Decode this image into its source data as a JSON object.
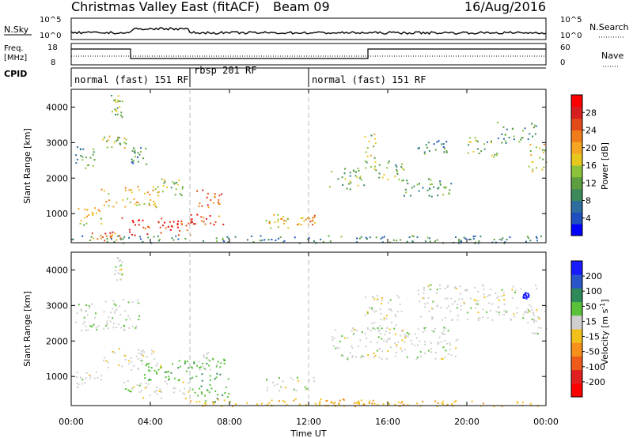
{
  "header": {
    "title": "Christmas Valley East (fitACF)",
    "beam": "Beam 09",
    "date": "16/Aug/2016"
  },
  "panels": {
    "nsky": {
      "left_label": "N.Sky",
      "right_label": "N.Search",
      "left_ticks": [
        "10^5",
        "10^0"
      ],
      "right_ticks": [
        "10^5",
        "10^0"
      ]
    },
    "freq": {
      "left_label_1": "Freq.",
      "left_label_2": "[MHz]",
      "right_label": "Nave",
      "left_ticks": [
        "18",
        "8"
      ],
      "right_ticks": [
        "60",
        "0"
      ]
    },
    "cpid": {
      "label": "CPID",
      "segments": [
        {
          "start": "00:00",
          "end": "06:00",
          "label": "normal (fast) 151 RF"
        },
        {
          "start": "06:00",
          "end": "12:00",
          "label": "rbsp 201 RF"
        },
        {
          "start": "12:00",
          "end": "24:00",
          "label": "normal (fast) 151 RF"
        }
      ]
    }
  },
  "x_axis": {
    "label": "Time UT",
    "ticks": [
      "00:00",
      "04:00",
      "08:00",
      "12:00",
      "16:00",
      "20:00",
      "00:00"
    ]
  },
  "power_panel": {
    "ylabel": "Slant Range [km]",
    "yticks": [
      "1000",
      "2000",
      "3000",
      "4000"
    ],
    "colorbar_label": "Power [dB]",
    "colorbar_ticks": [
      "4",
      "8",
      "12",
      "16",
      "20",
      "24",
      "28"
    ],
    "colors": [
      "#0000ff",
      "#1f4fbf",
      "#2d6e9e",
      "#3c8a5a",
      "#5c9e40",
      "#8bc23a",
      "#e8c81f",
      "#f5a623",
      "#f07d1a",
      "#e24a1a",
      "#d61e1e",
      "#ff0000"
    ]
  },
  "velocity_panel": {
    "ylabel": "Slant Range [km]",
    "yticks": [
      "1000",
      "2000",
      "3000",
      "4000"
    ],
    "colorbar_label": "Velocity [m s",
    "colorbar_label_sup": "-1",
    "colorbar_label_end": "]",
    "colorbar_ticks": [
      "200",
      "100",
      "50",
      "15",
      "-15",
      "-50",
      "-100",
      "-200"
    ],
    "colors": [
      "#1a1aff",
      "#2a55c8",
      "#2f8a5a",
      "#59c23a",
      "#cfcfcf",
      "#f2c01a",
      "#f5901a",
      "#ee5a17",
      "#e02020",
      "#ff0000"
    ]
  },
  "chart_data": {
    "type": "heatmap",
    "x_range_hours": [
      0,
      24
    ],
    "y_range_km": [
      180,
      4500
    ],
    "power_range_db": [
      0,
      30
    ],
    "velocity_range": [
      -250,
      250
    ],
    "cpid_boundaries_hours": [
      6,
      12
    ],
    "power_patches": [
      {
        "t0": 2.0,
        "t1": 2.6,
        "r0": 3700,
        "r1": 4400,
        "p": 12
      },
      {
        "t0": 0.2,
        "t1": 1.2,
        "r0": 2300,
        "r1": 2900,
        "p": 10
      },
      {
        "t0": 1.5,
        "t1": 2.8,
        "r0": 2800,
        "r1": 3200,
        "p": 14
      },
      {
        "t0": 3.0,
        "t1": 3.8,
        "r0": 2400,
        "r1": 2900,
        "p": 9
      },
      {
        "t0": 0.2,
        "t1": 1.5,
        "r0": 700,
        "r1": 1200,
        "p": 16
      },
      {
        "t0": 1.5,
        "t1": 4.5,
        "r0": 1200,
        "r1": 1800,
        "p": 18
      },
      {
        "t0": 2.5,
        "t1": 6.0,
        "r0": 400,
        "r1": 900,
        "p": 26
      },
      {
        "t0": 1.0,
        "t1": 2.5,
        "r0": 250,
        "r1": 500,
        "p": 22
      },
      {
        "t0": 4.5,
        "t1": 5.6,
        "r0": 1500,
        "r1": 2000,
        "p": 14
      },
      {
        "t0": 6.3,
        "t1": 7.6,
        "r0": 1200,
        "r1": 1700,
        "p": 22
      },
      {
        "t0": 6.0,
        "t1": 7.8,
        "r0": 700,
        "r1": 1000,
        "p": 24
      },
      {
        "t0": 9.8,
        "t1": 11.0,
        "r0": 600,
        "r1": 1000,
        "p": 18
      },
      {
        "t0": 11.4,
        "t1": 12.3,
        "r0": 700,
        "r1": 1000,
        "p": 20
      },
      {
        "t0": 14.8,
        "t1": 15.4,
        "r0": 2200,
        "r1": 3300,
        "p": 14
      },
      {
        "t0": 15.5,
        "t1": 16.8,
        "r0": 1900,
        "r1": 2500,
        "p": 12
      },
      {
        "t0": 16.5,
        "t1": 19.5,
        "r0": 1500,
        "r1": 2000,
        "p": 10
      },
      {
        "t0": 13.0,
        "t1": 14.8,
        "r0": 1700,
        "r1": 2300,
        "p": 12
      },
      {
        "t0": 17.5,
        "t1": 19.0,
        "r0": 2700,
        "r1": 3100,
        "p": 8
      },
      {
        "t0": 20.0,
        "t1": 21.5,
        "r0": 2600,
        "r1": 3200,
        "p": 12
      },
      {
        "t0": 21.5,
        "t1": 23.5,
        "r0": 3000,
        "r1": 3600,
        "p": 10
      },
      {
        "t0": 23.0,
        "t1": 24.0,
        "r0": 2200,
        "r1": 3000,
        "p": 16
      },
      {
        "t0": 0.0,
        "t1": 24.0,
        "r0": 180,
        "r1": 400,
        "p": 8
      }
    ],
    "velocity_patches": [
      {
        "t0": 2.0,
        "t1": 2.6,
        "r0": 3700,
        "r1": 4400,
        "v": 0
      },
      {
        "t0": 0.2,
        "t1": 3.5,
        "r0": 2300,
        "r1": 3200,
        "v": 5
      },
      {
        "t0": 0.2,
        "t1": 1.5,
        "r0": 700,
        "r1": 1200,
        "v": 0
      },
      {
        "t0": 1.5,
        "t1": 4.5,
        "r0": 1200,
        "r1": 1800,
        "v": -5
      },
      {
        "t0": 2.5,
        "t1": 6.0,
        "r0": 400,
        "r1": 900,
        "v": 0
      },
      {
        "t0": 3.5,
        "t1": 8.0,
        "r0": 900,
        "r1": 1500,
        "v": 40
      },
      {
        "t0": 6.0,
        "t1": 8.0,
        "r0": 300,
        "r1": 800,
        "v": 40
      },
      {
        "t0": 6.3,
        "t1": 7.6,
        "r0": 1200,
        "r1": 1700,
        "v": 5
      },
      {
        "t0": 9.8,
        "t1": 12.3,
        "r0": 600,
        "r1": 1000,
        "v": 0
      },
      {
        "t0": 6.0,
        "t1": 16.0,
        "r0": 180,
        "r1": 400,
        "v": -40
      },
      {
        "t0": 12.0,
        "t1": 24.0,
        "r0": 180,
        "r1": 350,
        "v": -40
      },
      {
        "t0": 13.0,
        "t1": 19.5,
        "r0": 1500,
        "r1": 2400,
        "v": 0
      },
      {
        "t0": 14.8,
        "t1": 16.8,
        "r0": 2200,
        "r1": 3300,
        "v": 0
      },
      {
        "t0": 17.5,
        "t1": 23.5,
        "r0": 2600,
        "r1": 3600,
        "v": 0
      },
      {
        "t0": 23.0,
        "t1": 24.0,
        "r0": 2200,
        "r1": 3000,
        "v": 0
      },
      {
        "t0": 22.8,
        "t1": 23.1,
        "r0": 3200,
        "r1": 3400,
        "v": 220
      }
    ]
  }
}
